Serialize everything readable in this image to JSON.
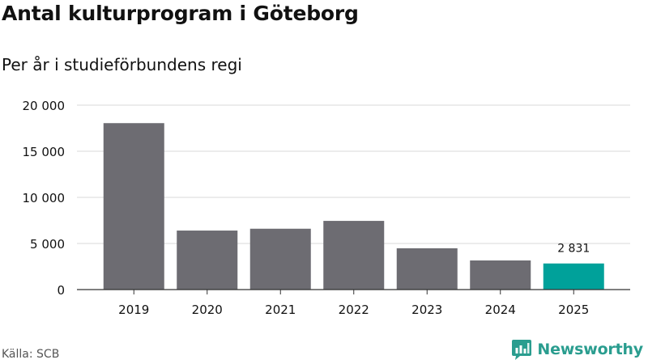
{
  "title": "Antal kulturprogram i Göteborg",
  "subtitle": "Per år i studieförbundens regi",
  "source": "Källa: SCB",
  "brand": {
    "name": "Newsworthy",
    "logo_icon": "newsworthy-logo-icon",
    "color": "#2a9d8f"
  },
  "colors": {
    "bar": "#6d6c72",
    "highlight": "#00a19a",
    "grid": "#d8d8d8",
    "axis": "#333333",
    "text": "#111111"
  },
  "chart_data": {
    "type": "bar",
    "title": "Antal kulturprogram i Göteborg",
    "subtitle": "Per år i studieförbundens regi",
    "categories": [
      "2019",
      "2020",
      "2021",
      "2022",
      "2023",
      "2024",
      "2025"
    ],
    "values": [
      18050,
      6400,
      6600,
      7450,
      4480,
      3160,
      2831
    ],
    "highlight_index": 6,
    "data_labels": [
      {
        "category": "2025",
        "text": "2 831"
      }
    ],
    "ylim": [
      0,
      20000
    ],
    "yticks": [
      0,
      5000,
      10000,
      15000,
      20000
    ],
    "ytick_labels": [
      "0",
      "5 000",
      "10 000",
      "15 000",
      "20 000"
    ],
    "xlabel": "",
    "ylabel": "",
    "grid": true,
    "legend": "none"
  }
}
